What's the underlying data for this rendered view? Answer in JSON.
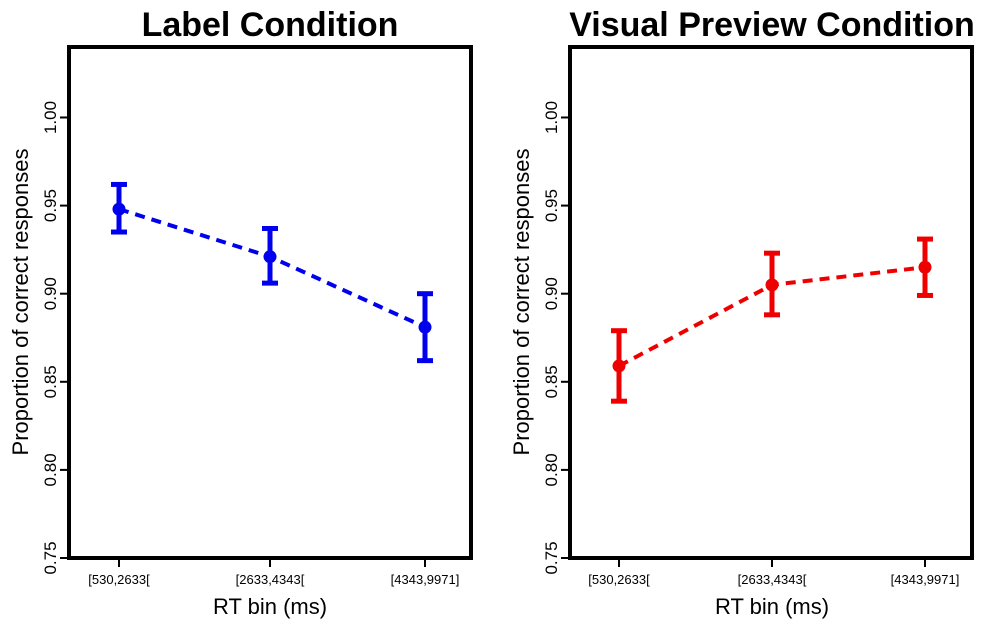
{
  "chart_data": [
    {
      "type": "line",
      "title": "Label Condition",
      "xlabel": "RT bin (ms)",
      "ylabel": "Proportion of correct responses",
      "categories": [
        "[530,2633[",
        "[2633,4343[",
        "[4343,9971]"
      ],
      "yticks": [
        "0.75",
        "0.80",
        "0.85",
        "0.90",
        "0.95",
        "1.00"
      ],
      "ylim": [
        0.75,
        1.04
      ],
      "color": "#0000ee",
      "series": [
        {
          "values": [
            0.948,
            0.921,
            0.881
          ],
          "lower": [
            0.935,
            0.906,
            0.862
          ],
          "upper": [
            0.962,
            0.937,
            0.9
          ]
        }
      ]
    },
    {
      "type": "line",
      "title": "Visual Preview Condition",
      "xlabel": "RT bin (ms)",
      "ylabel": "Proportion of correct responses",
      "categories": [
        "[530,2633[",
        "[2633,4343[",
        "[4343,9971]"
      ],
      "yticks": [
        "0.75",
        "0.80",
        "0.85",
        "0.90",
        "0.95",
        "1.00"
      ],
      "ylim": [
        0.75,
        1.04
      ],
      "color": "#ee0000",
      "series": [
        {
          "values": [
            0.859,
            0.905,
            0.915
          ],
          "lower": [
            0.839,
            0.888,
            0.899
          ],
          "upper": [
            0.879,
            0.923,
            0.931
          ]
        }
      ]
    }
  ]
}
